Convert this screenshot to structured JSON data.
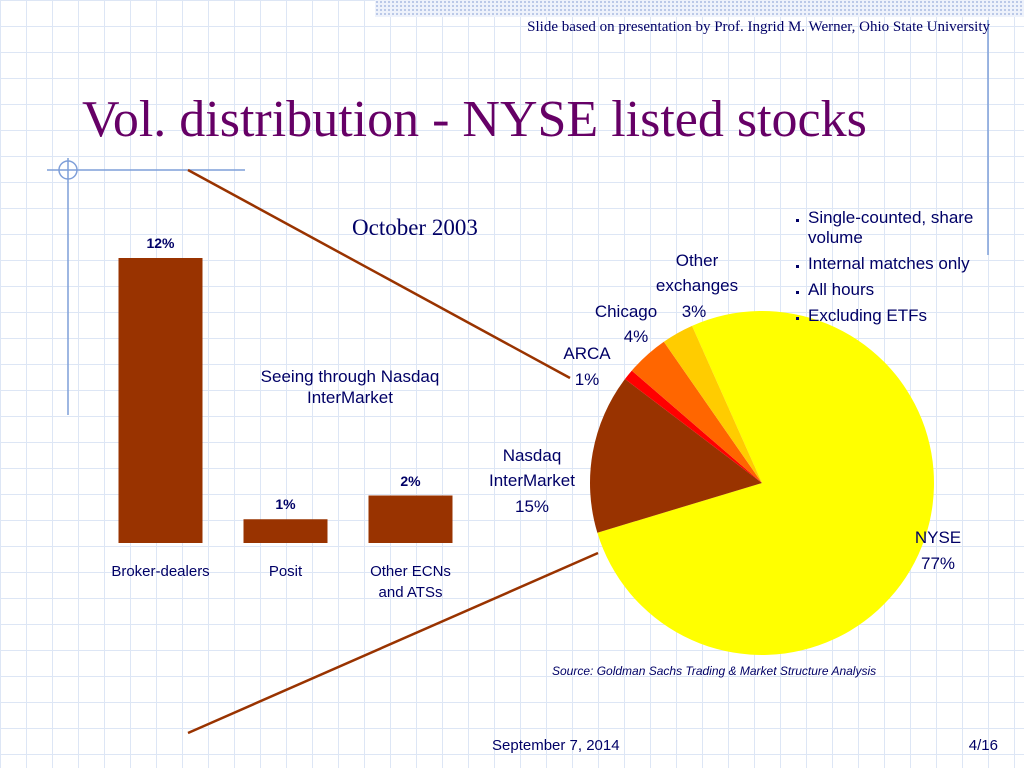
{
  "slide": {
    "header_note": "Slide based on presentation by Prof. Ingrid M. Werner, Ohio State University",
    "title": "Vol. distribution - NYSE listed stocks",
    "bullets": [
      "Single-counted, share volume",
      "Internal matches only",
      "All hours",
      "Excluding ETFs"
    ],
    "source": "Source: Goldman Sachs Trading & Market Structure Analysis",
    "footer_date": "September 7, 2014",
    "page_number": "4/16"
  },
  "chart_data": [
    {
      "type": "bar",
      "annotation": "Seeing through Nasdaq InterMarket",
      "categories": [
        "Broker-dealers",
        "Posit",
        "Other ECNs and ATSs"
      ],
      "values": [
        12,
        1,
        2
      ],
      "value_labels": [
        "12%",
        "1%",
        "2%"
      ],
      "color": "#993300"
    },
    {
      "type": "pie",
      "title": "October 2003",
      "categories": [
        "NYSE",
        "Nasdaq InterMarket",
        "ARCA",
        "Chicago",
        "Other exchanges"
      ],
      "values": [
        77,
        15,
        1,
        4,
        3
      ],
      "value_labels": [
        "77%",
        "15%",
        "1%",
        "4%",
        "3%"
      ],
      "colors": [
        "#ffff00",
        "#993300",
        "#ff0000",
        "#ff6600",
        "#ffcc00"
      ]
    }
  ]
}
